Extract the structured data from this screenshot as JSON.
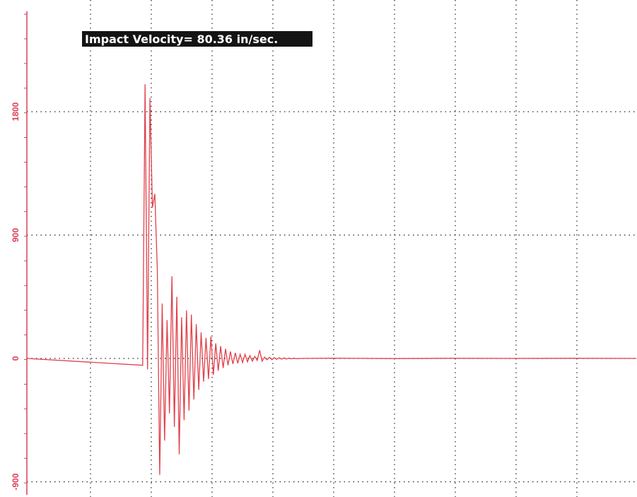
{
  "chart_data": {
    "type": "line",
    "title": "",
    "xlabel": "",
    "ylabel": "",
    "annotation": "Impact Velocity= 80.36 in/sec.",
    "y_ticks": [
      1800,
      900,
      0,
      -900
    ],
    "y_tick_labels": [
      "1800",
      "900",
      "0",
      "-900"
    ],
    "ylim": [
      -950,
      2500
    ],
    "xlim": [
      0,
      100
    ],
    "grid": true,
    "legend": "none",
    "series": [
      {
        "color": "#e0404a",
        "x": [
          0,
          19,
          19.4,
          19.8,
          20.2,
          20.6,
          21.0,
          21.4,
          21.8,
          22.2,
          22.6,
          23.0,
          23.4,
          23.8,
          24.2,
          24.6,
          25.0,
          25.4,
          25.8,
          26.2,
          26.6,
          27.0,
          27.4,
          27.8,
          28.2,
          28.6,
          29.0,
          29.4,
          29.8,
          30.2,
          30.6,
          31.0,
          31.4,
          31.8,
          32.2,
          32.6,
          33.0,
          33.4,
          33.8,
          34.2,
          34.6,
          35.0,
          35.4,
          35.8,
          36.2,
          36.6,
          37.0,
          37.4,
          37.8,
          38.2,
          38.6,
          39.0,
          39.4,
          39.8,
          40.2,
          40.6,
          41.0,
          41.4,
          41.8,
          42.2,
          42.6,
          43.0,
          43.4,
          43.8,
          44.2,
          45,
          50,
          60,
          70,
          80,
          90,
          100
        ],
        "y": [
          0,
          -50,
          2000,
          -80,
          1900,
          1100,
          1200,
          650,
          -850,
          400,
          -600,
          280,
          -400,
          600,
          -500,
          450,
          -700,
          300,
          -450,
          350,
          -380,
          320,
          -300,
          250,
          -230,
          190,
          -170,
          150,
          -150,
          160,
          -120,
          110,
          -90,
          90,
          -70,
          70,
          -50,
          50,
          -40,
          40,
          -35,
          30,
          -30,
          30,
          -25,
          20,
          -20,
          15,
          -15,
          60,
          -20,
          10,
          -10,
          8,
          -8,
          6,
          -6,
          5,
          -5,
          4,
          -4,
          3,
          -3,
          2,
          -2,
          0,
          2,
          -1,
          1,
          0,
          1,
          0
        ]
      }
    ]
  },
  "colors": {
    "axis": "#d9415a",
    "grid": "#222222",
    "banner_bg": "#141414",
    "banner_fg": "#ffffff"
  }
}
